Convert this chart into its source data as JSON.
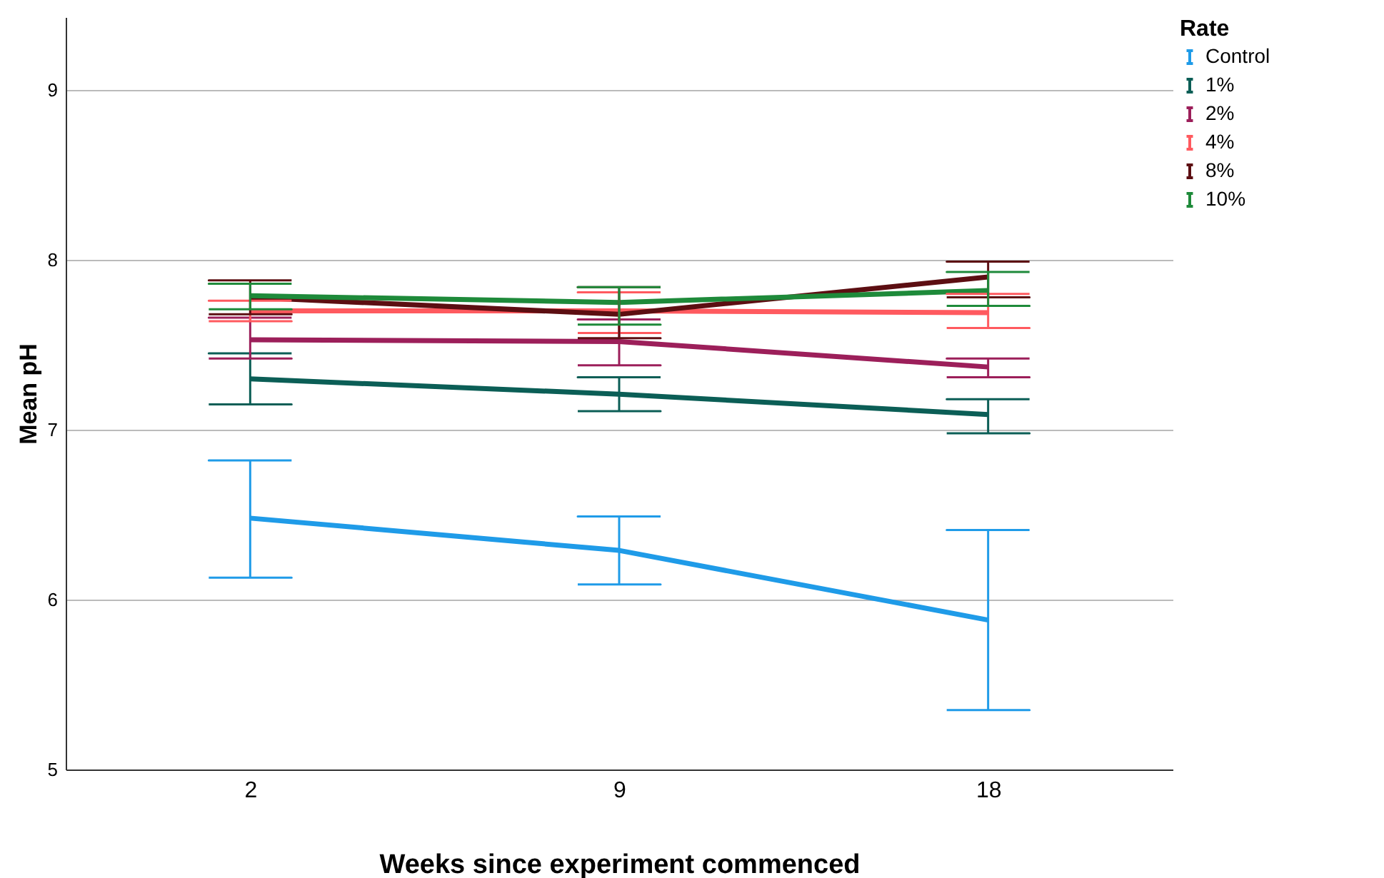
{
  "chart_data": {
    "type": "line",
    "xlabel": "Weeks since experiment commenced",
    "ylabel": "Mean pH",
    "legend_title": "Rate",
    "legend": "top right",
    "grid": "y",
    "categories": [
      "2",
      "9",
      "18"
    ],
    "ylim": [
      5,
      9.43
    ],
    "yticks": [
      5,
      6,
      7,
      8,
      9
    ],
    "series": [
      {
        "name": "Control",
        "color": "#1f9be8",
        "values": [
          6.48,
          6.29,
          5.88
        ],
        "errors": [
          [
            6.13,
            6.82
          ],
          [
            6.09,
            6.49
          ],
          [
            5.35,
            6.41
          ]
        ]
      },
      {
        "name": "1%",
        "color": "#0b5e56",
        "values": [
          7.3,
          7.21,
          7.09
        ],
        "errors": [
          [
            7.15,
            7.45
          ],
          [
            7.11,
            7.31
          ],
          [
            6.98,
            7.18
          ]
        ]
      },
      {
        "name": "2%",
        "color": "#9c1f5a",
        "values": [
          7.53,
          7.52,
          7.37
        ],
        "errors": [
          [
            7.42,
            7.66
          ],
          [
            7.38,
            7.65
          ],
          [
            7.31,
            7.42
          ]
        ]
      },
      {
        "name": "4%",
        "color": "#ff5a5f",
        "values": [
          7.7,
          7.7,
          7.69
        ],
        "errors": [
          [
            7.64,
            7.76
          ],
          [
            7.57,
            7.81
          ],
          [
            7.6,
            7.8
          ]
        ]
      },
      {
        "name": "8%",
        "color": "#5c0e12",
        "values": [
          7.78,
          7.68,
          7.9
        ],
        "errors": [
          [
            7.68,
            7.88
          ],
          [
            7.54,
            7.84
          ],
          [
            7.78,
            7.99
          ]
        ]
      },
      {
        "name": "10%",
        "color": "#1e8a3a",
        "values": [
          7.79,
          7.75,
          7.82
        ],
        "errors": [
          [
            7.71,
            7.86
          ],
          [
            7.62,
            7.84
          ],
          [
            7.73,
            7.93
          ]
        ]
      }
    ]
  }
}
